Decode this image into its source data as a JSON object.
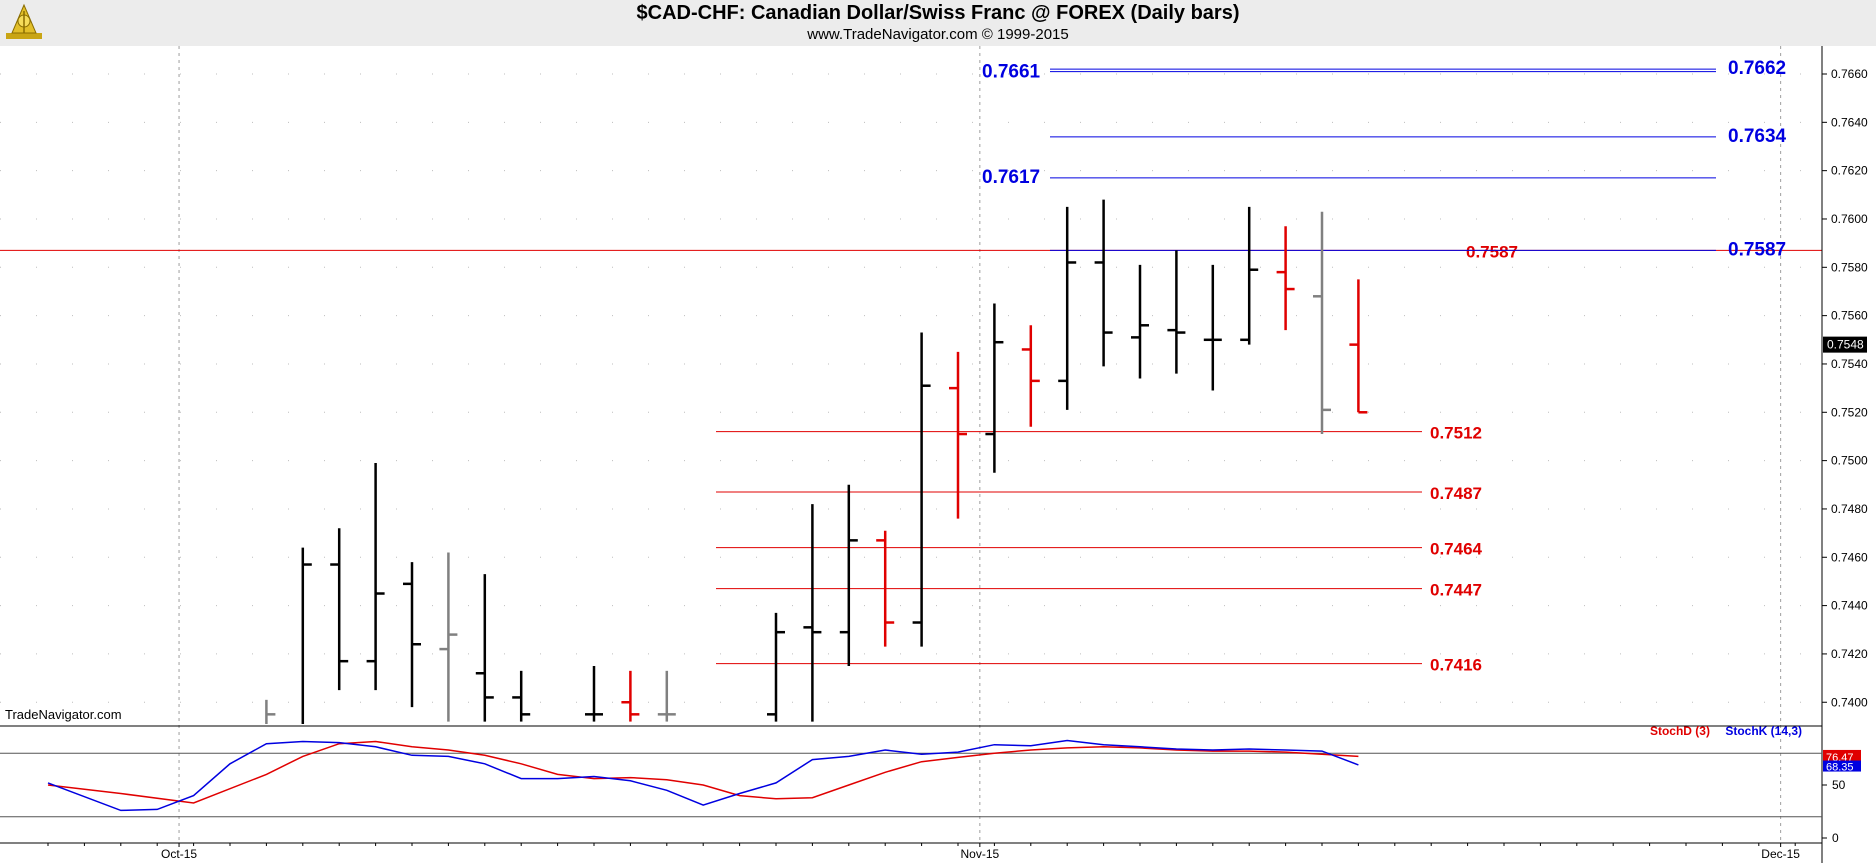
{
  "header": {
    "title": "$CAD-CHF:  Canadian Dollar/Swiss Franc @ FOREX  (Daily bars)",
    "subtitle": "www.TradeNavigator.com © 1999-2015",
    "watermark": "TradeNavigator.com"
  },
  "colors": {
    "up_bar": "#000000",
    "down_bar": "#e00000",
    "neutral_bar": "#808080",
    "resistance": "#0000e0",
    "support": "#e00000",
    "stoch_d": "#e00000",
    "stoch_k": "#0000e0"
  },
  "chart_data": {
    "type": "ohlc",
    "price_axis": {
      "min": 0.7391,
      "max": 0.7672,
      "ticks": [
        "0.7400",
        "0.7420",
        "0.7440",
        "0.7460",
        "0.7480",
        "0.7500",
        "0.7520",
        "0.7540",
        "0.7560",
        "0.7580",
        "0.7600",
        "0.7620",
        "0.7640",
        "0.7660"
      ]
    },
    "last_price": "0.7548",
    "x_ticks": [
      {
        "label": "Oct-15",
        "bar": 3.6
      },
      {
        "label": "Nov-15",
        "bar": 25.6
      },
      {
        "label": "Dec-15",
        "bar": 47.6
      }
    ],
    "bars": [
      {
        "i": 6,
        "open": 0.738,
        "high": 0.7401,
        "low": 0.738,
        "close": 0.7395,
        "color": "gray"
      },
      {
        "i": 7,
        "open": 0.738,
        "high": 0.7464,
        "low": 0.738,
        "close": 0.7457,
        "color": "black"
      },
      {
        "i": 8,
        "open": 0.7457,
        "high": 0.7472,
        "low": 0.7405,
        "close": 0.7417,
        "color": "black"
      },
      {
        "i": 9,
        "open": 0.7417,
        "high": 0.7499,
        "low": 0.7405,
        "close": 0.7445,
        "color": "black"
      },
      {
        "i": 10,
        "open": 0.7449,
        "high": 0.7458,
        "low": 0.7398,
        "close": 0.7424,
        "color": "black"
      },
      {
        "i": 11,
        "open": 0.7422,
        "high": 0.7462,
        "low": 0.7392,
        "close": 0.7428,
        "color": "gray"
      },
      {
        "i": 12,
        "open": 0.7412,
        "high": 0.7453,
        "low": 0.7392,
        "close": 0.7402,
        "color": "black"
      },
      {
        "i": 13,
        "open": 0.7402,
        "high": 0.7413,
        "low": 0.7392,
        "close": 0.7395,
        "color": "black"
      },
      {
        "i": 15,
        "open": 0.7395,
        "high": 0.7415,
        "low": 0.7392,
        "close": 0.7395,
        "color": "black"
      },
      {
        "i": 16,
        "open": 0.74,
        "high": 0.7413,
        "low": 0.7392,
        "close": 0.7395,
        "color": "red"
      },
      {
        "i": 17,
        "open": 0.7395,
        "high": 0.7413,
        "low": 0.7392,
        "close": 0.7395,
        "color": "gray"
      },
      {
        "i": 20,
        "open": 0.7395,
        "high": 0.7437,
        "low": 0.7392,
        "close": 0.7429,
        "color": "black"
      },
      {
        "i": 21,
        "open": 0.7431,
        "high": 0.7482,
        "low": 0.7392,
        "close": 0.7429,
        "color": "black"
      },
      {
        "i": 22,
        "open": 0.7429,
        "high": 0.749,
        "low": 0.7415,
        "close": 0.7467,
        "color": "black"
      },
      {
        "i": 23,
        "open": 0.7467,
        "high": 0.7471,
        "low": 0.7423,
        "close": 0.7433,
        "color": "red"
      },
      {
        "i": 24,
        "open": 0.7433,
        "high": 0.7553,
        "low": 0.7423,
        "close": 0.7531,
        "color": "black"
      },
      {
        "i": 25,
        "open": 0.753,
        "high": 0.7545,
        "low": 0.7476,
        "close": 0.7511,
        "color": "red"
      },
      {
        "i": 26,
        "open": 0.7511,
        "high": 0.7565,
        "low": 0.7495,
        "close": 0.7549,
        "color": "black"
      },
      {
        "i": 27,
        "open": 0.7546,
        "high": 0.7556,
        "low": 0.7514,
        "close": 0.7533,
        "color": "red"
      },
      {
        "i": 28,
        "open": 0.7533,
        "high": 0.7605,
        "low": 0.7521,
        "close": 0.7582,
        "color": "black"
      },
      {
        "i": 29,
        "open": 0.7582,
        "high": 0.7608,
        "low": 0.7539,
        "close": 0.7553,
        "color": "black"
      },
      {
        "i": 30,
        "open": 0.7551,
        "high": 0.7581,
        "low": 0.7534,
        "close": 0.7556,
        "color": "black"
      },
      {
        "i": 31,
        "open": 0.7554,
        "high": 0.7587,
        "low": 0.7536,
        "close": 0.7553,
        "color": "black"
      },
      {
        "i": 32,
        "open": 0.755,
        "high": 0.7581,
        "low": 0.7529,
        "close": 0.755,
        "color": "black"
      },
      {
        "i": 33,
        "open": 0.755,
        "high": 0.7605,
        "low": 0.7548,
        "close": 0.7579,
        "color": "black"
      },
      {
        "i": 34,
        "open": 0.7578,
        "high": 0.7597,
        "low": 0.7554,
        "close": 0.7571,
        "color": "red"
      },
      {
        "i": 35,
        "open": 0.7568,
        "high": 0.7603,
        "low": 0.7511,
        "close": 0.7521,
        "color": "gray"
      },
      {
        "i": 36,
        "open": 0.7548,
        "high": 0.7575,
        "low": 0.752,
        "close": 0.752,
        "color": "red"
      }
    ],
    "resistance_levels": [
      {
        "value": 0.7662,
        "label": "0.7662"
      },
      {
        "value": 0.7661,
        "label": "0.7661"
      },
      {
        "value": 0.7634,
        "label": "0.7634"
      },
      {
        "value": 0.7617,
        "label": "0.7617"
      },
      {
        "value": 0.7587,
        "label": "0.7587"
      }
    ],
    "support_levels": [
      {
        "value": 0.7512,
        "label": "0.7512"
      },
      {
        "value": 0.7487,
        "label": "0.7487"
      },
      {
        "value": 0.7464,
        "label": "0.7464"
      },
      {
        "value": 0.7447,
        "label": "0.7447"
      },
      {
        "value": 0.7416,
        "label": "0.7416"
      }
    ],
    "reference_line": {
      "value": 0.7587,
      "label": "0.7587"
    },
    "stochastic": {
      "title_d": "StochD (3)",
      "title_k": "StochK (14,3)",
      "axis": {
        "min": 0,
        "max": 100,
        "ticks": [
          "0",
          "50"
        ]
      },
      "levels": [
        80,
        20
      ],
      "last_d": "76.47",
      "last_k": "68.35",
      "d_points": [
        [
          0,
          50
        ],
        [
          2,
          42
        ],
        [
          4,
          33
        ],
        [
          6,
          60
        ],
        [
          7,
          77
        ],
        [
          8,
          89
        ],
        [
          9,
          91
        ],
        [
          10,
          86
        ],
        [
          11,
          83
        ],
        [
          12,
          78
        ],
        [
          13,
          70
        ],
        [
          14,
          60
        ],
        [
          15,
          56
        ],
        [
          16,
          57
        ],
        [
          17,
          55
        ],
        [
          18,
          50
        ],
        [
          19,
          40
        ],
        [
          20,
          37
        ],
        [
          21,
          38
        ],
        [
          22,
          50
        ],
        [
          23,
          62
        ],
        [
          24,
          72
        ],
        [
          25,
          76
        ],
        [
          26,
          80
        ],
        [
          27,
          83
        ],
        [
          28,
          85
        ],
        [
          29,
          86
        ],
        [
          30,
          85
        ],
        [
          31,
          83
        ],
        [
          32,
          82
        ],
        [
          33,
          82
        ],
        [
          34,
          81
        ],
        [
          35,
          79
        ],
        [
          36,
          77
        ]
      ],
      "k_points": [
        [
          0,
          52
        ],
        [
          2,
          26
        ],
        [
          3,
          27
        ],
        [
          4,
          40
        ],
        [
          5,
          70
        ],
        [
          6,
          89
        ],
        [
          7,
          91
        ],
        [
          8,
          90
        ],
        [
          9,
          86
        ],
        [
          10,
          78
        ],
        [
          11,
          77
        ],
        [
          12,
          70
        ],
        [
          13,
          56
        ],
        [
          14,
          56
        ],
        [
          15,
          58
        ],
        [
          16,
          54
        ],
        [
          17,
          45
        ],
        [
          18,
          31
        ],
        [
          19,
          42
        ],
        [
          20,
          52
        ],
        [
          21,
          74
        ],
        [
          22,
          77
        ],
        [
          23,
          83
        ],
        [
          24,
          79
        ],
        [
          25,
          81
        ],
        [
          26,
          88
        ],
        [
          27,
          87
        ],
        [
          28,
          92
        ],
        [
          29,
          88
        ],
        [
          30,
          86
        ],
        [
          31,
          84
        ],
        [
          32,
          83
        ],
        [
          33,
          84
        ],
        [
          34,
          83
        ],
        [
          35,
          82
        ],
        [
          36,
          69
        ]
      ]
    }
  }
}
